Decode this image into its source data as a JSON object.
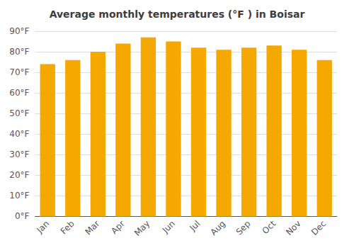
{
  "chart_data": {
    "type": "bar",
    "title": "Average monthly temperatures (°F ) in Boisar",
    "categories": [
      "Jan",
      "Feb",
      "Mar",
      "Apr",
      "May",
      "Jun",
      "Jul",
      "Aug",
      "Sep",
      "Oct",
      "Nov",
      "Dec"
    ],
    "values": [
      74,
      76,
      80,
      84,
      87,
      85,
      82,
      81,
      82,
      83,
      81,
      76
    ],
    "color": "#F5A800",
    "ylim": [
      0,
      90
    ],
    "yticks": [
      {
        "value": 0,
        "label": "0°F"
      },
      {
        "value": 10,
        "label": "10°F"
      },
      {
        "value": 20,
        "label": "20°F"
      },
      {
        "value": 30,
        "label": "30°F"
      },
      {
        "value": 40,
        "label": "40°F"
      },
      {
        "value": 50,
        "label": "50°F"
      },
      {
        "value": 60,
        "label": "60°F"
      },
      {
        "value": 70,
        "label": "70°F"
      },
      {
        "value": 80,
        "label": "80°F"
      },
      {
        "value": 90,
        "label": "90°F"
      }
    ],
    "grid": true
  }
}
